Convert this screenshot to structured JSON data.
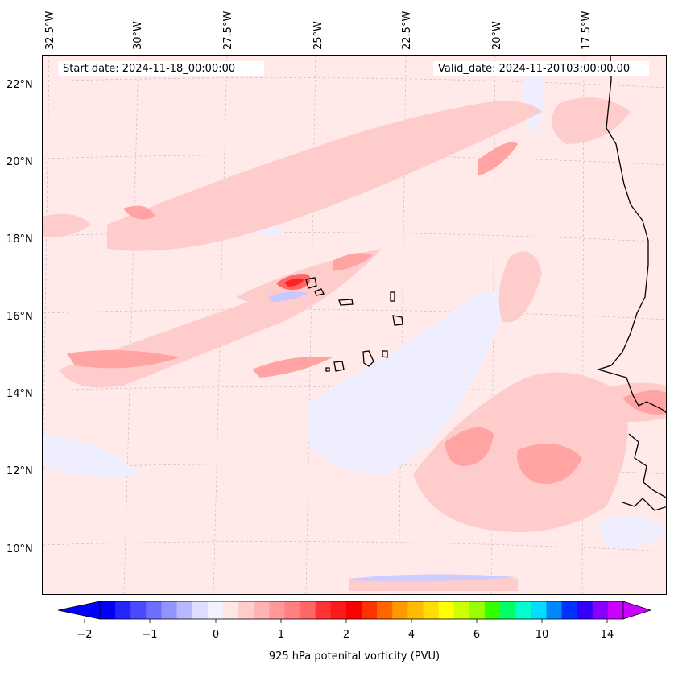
{
  "map": {
    "start_date": "Start date: 2024-11-18_00:00:00",
    "valid_date": "Valid_date: 2024-11-20T03:00:00.00",
    "longitude_labels": [
      "32.5°W",
      "30°W",
      "27.5°W",
      "25°W",
      "22.5°W",
      "20°W",
      "17.5°W"
    ],
    "latitude_labels": [
      "22°N",
      "20°N",
      "18°N",
      "16°N",
      "14°N",
      "12°N",
      "10°N"
    ],
    "background_color": "#ffe9e9",
    "gridlines": true,
    "coastlines": true
  },
  "colorbar": {
    "label": "925 hPa potenital vorticity (PVU)",
    "tick_labels": [
      "−2",
      "−1",
      "0",
      "1",
      "2",
      "4",
      "6",
      "10",
      "14"
    ],
    "extend": "both",
    "colors": [
      "#0000ff",
      "#2525ff",
      "#4a4aff",
      "#6f6fff",
      "#9494ff",
      "#b8b8ff",
      "#ddddff",
      "#f2f2ff",
      "#ffe6e6",
      "#ffcccc",
      "#ffb3b3",
      "#ff9999",
      "#ff8080",
      "#ff6666",
      "#ff3333",
      "#ff1a1a",
      "#ff0000",
      "#ff3300",
      "#ff6600",
      "#ff9900",
      "#ffbb00",
      "#ffdd00",
      "#ffff00",
      "#ccff00",
      "#99ff00",
      "#33ff00",
      "#00ff66",
      "#00ffcc",
      "#00ddff",
      "#0088ff",
      "#0033ff",
      "#3300ff",
      "#8800ff",
      "#cc00ff"
    ],
    "under_color": "#0000ff",
    "over_color": "#cc00ff"
  }
}
